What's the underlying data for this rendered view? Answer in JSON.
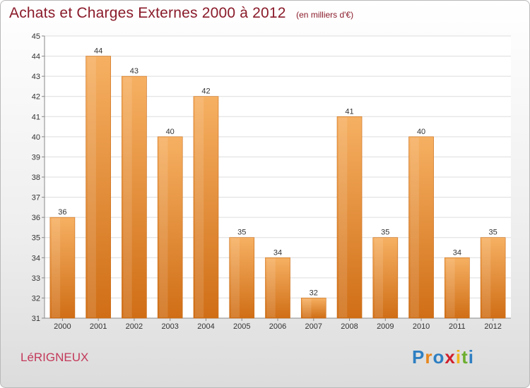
{
  "header": {
    "title": "Achats et Charges Externes 2000 à 2012",
    "unit": "(en milliers d'€)"
  },
  "footer": {
    "commune": "LéRIGNEUX",
    "logo_letters": [
      "P",
      "r",
      "o",
      "x",
      "i",
      "t",
      "i"
    ],
    "logo_colors": [
      "#2e7fc2",
      "#e8861c",
      "#2e7fc2",
      "#d11f2c",
      "#f0b51a",
      "#6cae2f",
      "#2e7fc2"
    ]
  },
  "chart_data": {
    "type": "bar",
    "title": "Achats et Charges Externes 2000 à 2012",
    "subtitle": "(en milliers d'€)",
    "xlabel": "",
    "ylabel": "",
    "categories": [
      "2000",
      "2001",
      "2002",
      "2003",
      "2004",
      "2005",
      "2006",
      "2007",
      "2008",
      "2009",
      "2010",
      "2011",
      "2012"
    ],
    "values": [
      36,
      44,
      43,
      40,
      42,
      35,
      34,
      32,
      41,
      35,
      40,
      34,
      35
    ],
    "ylim": [
      31,
      45
    ],
    "yticks": [
      31,
      32,
      33,
      34,
      35,
      36,
      37,
      38,
      39,
      40,
      41,
      42,
      43,
      44,
      45
    ],
    "grid": true,
    "legend": "none",
    "bar_color": "#f0922e",
    "bar_color_light": "#f6b062",
    "bar_color_dark": "#d06e16"
  }
}
